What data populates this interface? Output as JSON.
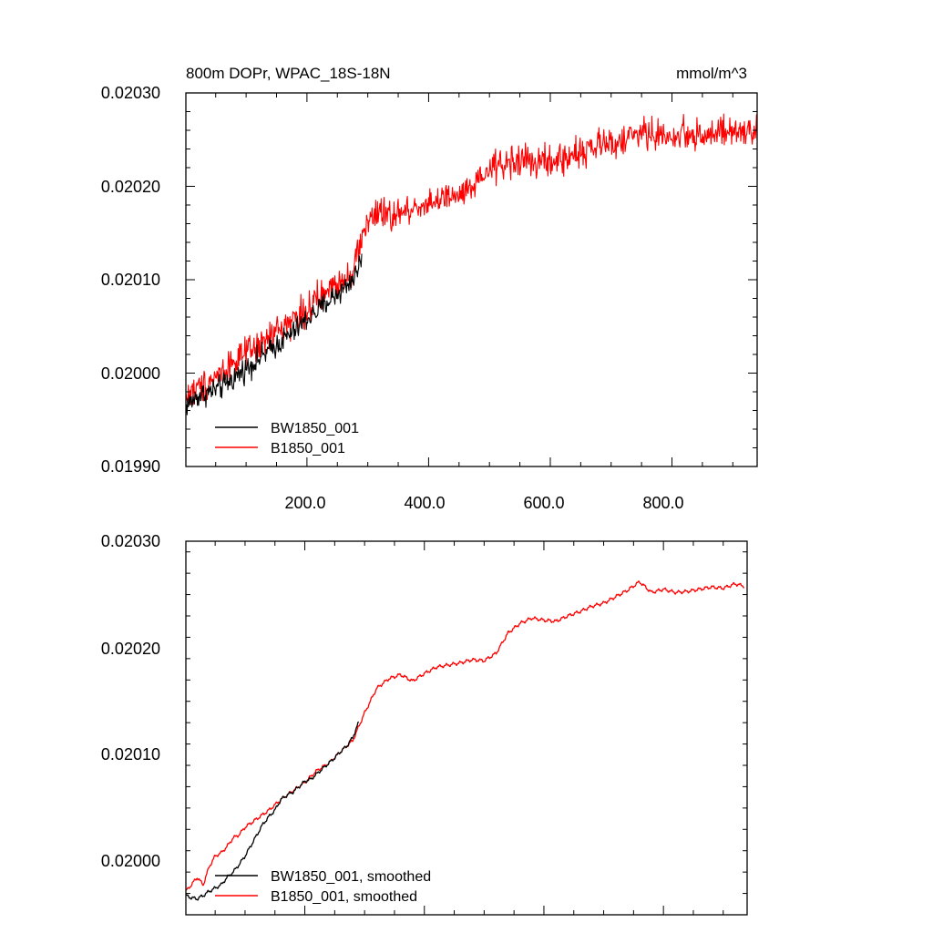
{
  "chart_data": [
    {
      "type": "line",
      "title": "800m DOPr, WPAC_18S-18N",
      "units_label": "mmol/m^3",
      "xlabel": "",
      "ylabel": "",
      "xlim": [
        1,
        940
      ],
      "ylim": [
        0.0199,
        0.0203
      ],
      "xticks": [
        200,
        400,
        600,
        800
      ],
      "xtick_labels": [
        "200.0",
        "400.0",
        "600.0",
        "800.0"
      ],
      "yticks": [
        0.0199,
        0.02,
        0.0201,
        0.0202,
        0.0203
      ],
      "ytick_labels": [
        "0.01990",
        "0.02000",
        "0.02010",
        "0.02020",
        "0.02030"
      ],
      "legend_position": "bottom-left",
      "series": [
        {
          "name": "BW1850_001",
          "color": "#000000",
          "noise": 6.5e-06,
          "x": [
            1,
            20,
            40,
            60,
            80,
            100,
            120,
            140,
            160,
            180,
            200,
            220,
            240,
            260,
            280,
            290
          ],
          "y": [
            0.019965,
            0.019975,
            0.01998,
            0.019985,
            0.019995,
            0.020005,
            0.020015,
            0.020025,
            0.020035,
            0.020045,
            0.020058,
            0.020068,
            0.02008,
            0.02009,
            0.020105,
            0.020125
          ]
        },
        {
          "name": "B1850_001",
          "color": "#ff0000",
          "noise": 8.5e-06,
          "x": [
            1,
            25,
            50,
            75,
            100,
            125,
            150,
            175,
            200,
            225,
            250,
            275,
            300,
            320,
            340,
            360,
            380,
            400,
            425,
            450,
            475,
            500,
            525,
            550,
            575,
            600,
            625,
            650,
            675,
            700,
            725,
            750,
            775,
            800,
            825,
            850,
            875,
            900,
            925,
            940
          ],
          "y": [
            0.019975,
            0.019985,
            0.019997,
            0.02001,
            0.02002,
            0.02003,
            0.020045,
            0.020057,
            0.020068,
            0.020082,
            0.020097,
            0.02011,
            0.020165,
            0.02017,
            0.020168,
            0.020172,
            0.020178,
            0.020183,
            0.020186,
            0.020189,
            0.020198,
            0.020218,
            0.020225,
            0.020228,
            0.020226,
            0.020225,
            0.02023,
            0.020238,
            0.020242,
            0.020247,
            0.02025,
            0.020258,
            0.020255,
            0.020252,
            0.020257,
            0.020255,
            0.020256,
            0.020257,
            0.020258,
            0.020257
          ]
        }
      ]
    },
    {
      "type": "line",
      "title": "",
      "xlabel": "",
      "ylabel": "",
      "xlim": [
        1,
        940
      ],
      "ylim": [
        0.01995,
        0.0203
      ],
      "xticks": [
        200,
        400,
        600,
        800
      ],
      "xtick_labels": [],
      "yticks": [
        0.02,
        0.0201,
        0.0202,
        0.0203
      ],
      "ytick_labels": [
        "0.02000",
        "0.02010",
        "0.02020",
        "0.02030"
      ],
      "legend_position": "bottom-left",
      "series": [
        {
          "name": "BW1850_001, smoothed",
          "color": "#000000",
          "noise": 0,
          "x": [
            1,
            10,
            20,
            30,
            40,
            50,
            60,
            70,
            80,
            90,
            100,
            110,
            120,
            130,
            140,
            150,
            160,
            170,
            180,
            190,
            200,
            210,
            220,
            230,
            240,
            250,
            260,
            270,
            280,
            290
          ],
          "y": [
            0.019968,
            0.019966,
            0.019965,
            0.019968,
            0.019972,
            0.019975,
            0.019978,
            0.019985,
            0.01999,
            0.019997,
            0.020005,
            0.020015,
            0.020025,
            0.020035,
            0.020042,
            0.020048,
            0.020058,
            0.020062,
            0.020065,
            0.02007,
            0.020075,
            0.020077,
            0.020082,
            0.020087,
            0.020092,
            0.020097,
            0.020103,
            0.020108,
            0.020116,
            0.02013
          ]
        },
        {
          "name": "B1850_001, smoothed",
          "color": "#ff0000",
          "noise": 0,
          "x": [
            1,
            10,
            20,
            30,
            40,
            50,
            60,
            70,
            80,
            90,
            100,
            120,
            140,
            160,
            180,
            200,
            220,
            240,
            260,
            280,
            300,
            320,
            340,
            360,
            380,
            400,
            420,
            440,
            460,
            480,
            500,
            520,
            540,
            560,
            580,
            600,
            620,
            640,
            660,
            680,
            700,
            720,
            740,
            760,
            780,
            800,
            820,
            840,
            860,
            880,
            900,
            920,
            935
          ],
          "y": [
            0.019972,
            0.019978,
            0.019985,
            0.019978,
            0.019995,
            0.020005,
            0.020008,
            0.020014,
            0.020022,
            0.020025,
            0.020032,
            0.02004,
            0.020048,
            0.020058,
            0.020066,
            0.020074,
            0.020085,
            0.020092,
            0.020103,
            0.020113,
            0.020139,
            0.020162,
            0.020171,
            0.020175,
            0.020169,
            0.020176,
            0.020182,
            0.020184,
            0.020186,
            0.020189,
            0.020188,
            0.020195,
            0.020214,
            0.020223,
            0.020228,
            0.020226,
            0.020225,
            0.02023,
            0.020234,
            0.020239,
            0.020242,
            0.020248,
            0.020254,
            0.020262,
            0.020252,
            0.020255,
            0.020252,
            0.020253,
            0.020255,
            0.020257,
            0.020256,
            0.02026,
            0.020258
          ]
        }
      ]
    }
  ]
}
